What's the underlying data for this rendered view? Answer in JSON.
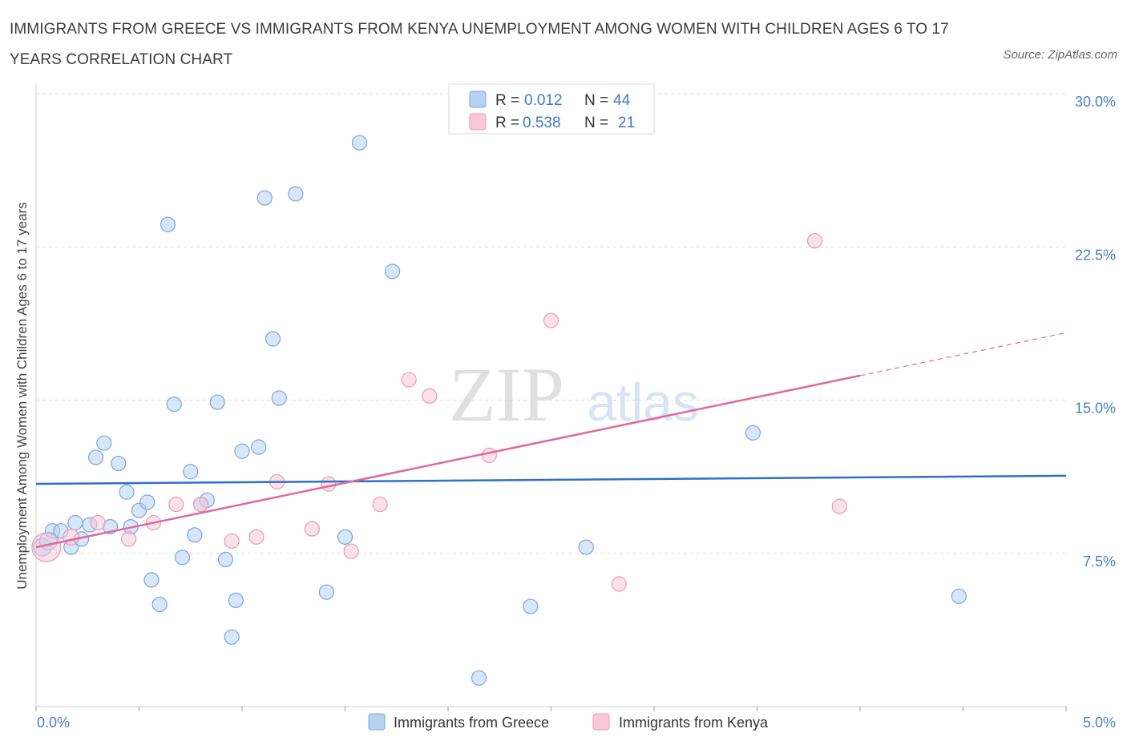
{
  "title": "IMMIGRANTS FROM GREECE VS IMMIGRANTS FROM KENYA UNEMPLOYMENT AMONG WOMEN WITH CHILDREN AGES 6 TO 17 YEARS CORRELATION CHART",
  "source": "Source: ZipAtlas.com",
  "watermark": {
    "zip": "ZIP",
    "atlas": "atlas"
  },
  "colors": {
    "greece_fill": "#b7d1f3",
    "greece_stroke": "#7aa6df",
    "greece_line": "#2e6fcc",
    "kenya_fill": "#f8c8d8",
    "kenya_stroke": "#e99ab5",
    "kenya_line": "#e0689a",
    "grid": "#dddddd",
    "tick_text": "#4a7fc7"
  },
  "legend": {
    "series": [
      {
        "r_label": "R =",
        "r_value": "0.012",
        "n_label": "N =",
        "n_value": "44"
      },
      {
        "r_label": "R =",
        "r_value": "0.538",
        "n_label": "N =",
        "n_value": "21"
      }
    ]
  },
  "chart_data": {
    "type": "scatter",
    "title": "IMMIGRANTS FROM GREECE VS IMMIGRANTS FROM KENYA UNEMPLOYMENT AMONG WOMEN WITH CHILDREN AGES 6 TO 17 YEARS CORRELATION CHART",
    "xlabel": "",
    "ylabel": "Unemployment Among Women with Children Ages 6 to 17 years",
    "xlim": [
      0,
      5
    ],
    "ylim": [
      0,
      30
    ],
    "x_tick_labels": [
      "0.0%",
      "5.0%"
    ],
    "y_ticks": [
      7.5,
      15,
      22.5,
      30
    ],
    "y_tick_labels": [
      "7.5%",
      "15.0%",
      "22.5%",
      "30.0%"
    ],
    "grid": true,
    "series": [
      {
        "name": "Immigrants from Greece",
        "r": 0.012,
        "n": 44,
        "trend": {
          "x": [
            0,
            5
          ],
          "y": [
            10.9,
            11.3
          ]
        },
        "points": [
          {
            "x": 0.03,
            "y": 7.8,
            "s": 11
          },
          {
            "x": 0.06,
            "y": 8.1,
            "s": 11
          },
          {
            "x": 0.08,
            "y": 8.6,
            "s": 9
          },
          {
            "x": 0.12,
            "y": 8.6,
            "s": 9
          },
          {
            "x": 0.17,
            "y": 7.8,
            "s": 9
          },
          {
            "x": 0.19,
            "y": 9.0,
            "s": 9
          },
          {
            "x": 0.22,
            "y": 8.2,
            "s": 9
          },
          {
            "x": 0.26,
            "y": 8.9,
            "s": 9
          },
          {
            "x": 0.29,
            "y": 12.2,
            "s": 9
          },
          {
            "x": 0.33,
            "y": 12.9,
            "s": 9
          },
          {
            "x": 0.36,
            "y": 8.8,
            "s": 9
          },
          {
            "x": 0.4,
            "y": 11.9,
            "s": 9
          },
          {
            "x": 0.44,
            "y": 10.5,
            "s": 9
          },
          {
            "x": 0.46,
            "y": 8.8,
            "s": 9
          },
          {
            "x": 0.5,
            "y": 9.6,
            "s": 9
          },
          {
            "x": 0.54,
            "y": 10.0,
            "s": 9
          },
          {
            "x": 0.56,
            "y": 6.2,
            "s": 9
          },
          {
            "x": 0.6,
            "y": 5.0,
            "s": 9
          },
          {
            "x": 0.64,
            "y": 23.6,
            "s": 9
          },
          {
            "x": 0.67,
            "y": 14.8,
            "s": 9
          },
          {
            "x": 0.71,
            "y": 7.3,
            "s": 9
          },
          {
            "x": 0.75,
            "y": 11.5,
            "s": 9
          },
          {
            "x": 0.77,
            "y": 8.4,
            "s": 9
          },
          {
            "x": 0.8,
            "y": 9.9,
            "s": 9
          },
          {
            "x": 0.83,
            "y": 10.1,
            "s": 9
          },
          {
            "x": 0.88,
            "y": 14.9,
            "s": 9
          },
          {
            "x": 0.92,
            "y": 7.2,
            "s": 9
          },
          {
            "x": 0.95,
            "y": 3.4,
            "s": 9
          },
          {
            "x": 0.97,
            "y": 5.2,
            "s": 9
          },
          {
            "x": 1.0,
            "y": 12.5,
            "s": 9
          },
          {
            "x": 1.08,
            "y": 12.7,
            "s": 9
          },
          {
            "x": 1.11,
            "y": 24.9,
            "s": 9
          },
          {
            "x": 1.15,
            "y": 18.0,
            "s": 9
          },
          {
            "x": 1.18,
            "y": 15.1,
            "s": 9
          },
          {
            "x": 1.26,
            "y": 25.1,
            "s": 9
          },
          {
            "x": 1.41,
            "y": 5.6,
            "s": 9
          },
          {
            "x": 1.57,
            "y": 27.6,
            "s": 9
          },
          {
            "x": 1.73,
            "y": 21.3,
            "s": 9
          },
          {
            "x": 1.5,
            "y": 8.3,
            "s": 9
          },
          {
            "x": 2.15,
            "y": 1.4,
            "s": 9
          },
          {
            "x": 2.4,
            "y": 4.9,
            "s": 9
          },
          {
            "x": 2.67,
            "y": 7.8,
            "s": 9
          },
          {
            "x": 3.48,
            "y": 13.4,
            "s": 9
          },
          {
            "x": 4.48,
            "y": 5.4,
            "s": 9
          }
        ]
      },
      {
        "name": "Immigrants from Kenya",
        "r": 0.538,
        "n": 21,
        "trend": {
          "x": [
            0,
            4.0
          ],
          "y": [
            7.8,
            16.2
          ]
        },
        "trend_dashed": {
          "x": [
            4.0,
            5
          ],
          "y": [
            16.2,
            18.3
          ]
        },
        "points": [
          {
            "x": 0.05,
            "y": 7.8,
            "s": 18
          },
          {
            "x": 0.17,
            "y": 8.3,
            "s": 10
          },
          {
            "x": 0.3,
            "y": 9.0,
            "s": 9
          },
          {
            "x": 0.45,
            "y": 8.2,
            "s": 9
          },
          {
            "x": 0.57,
            "y": 9.0,
            "s": 9
          },
          {
            "x": 0.68,
            "y": 9.9,
            "s": 9
          },
          {
            "x": 0.8,
            "y": 9.9,
            "s": 9
          },
          {
            "x": 0.95,
            "y": 8.1,
            "s": 9
          },
          {
            "x": 1.07,
            "y": 8.3,
            "s": 9
          },
          {
            "x": 1.17,
            "y": 11.0,
            "s": 9
          },
          {
            "x": 1.34,
            "y": 8.7,
            "s": 9
          },
          {
            "x": 1.42,
            "y": 10.9,
            "s": 9
          },
          {
            "x": 1.53,
            "y": 7.6,
            "s": 9
          },
          {
            "x": 1.67,
            "y": 9.9,
            "s": 9
          },
          {
            "x": 1.81,
            "y": 16.0,
            "s": 9
          },
          {
            "x": 1.91,
            "y": 15.2,
            "s": 9
          },
          {
            "x": 2.2,
            "y": 12.3,
            "s": 9
          },
          {
            "x": 2.5,
            "y": 18.9,
            "s": 9
          },
          {
            "x": 2.83,
            "y": 6.0,
            "s": 9
          },
          {
            "x": 3.78,
            "y": 22.8,
            "s": 9
          },
          {
            "x": 3.9,
            "y": 9.8,
            "s": 9
          }
        ]
      }
    ]
  }
}
